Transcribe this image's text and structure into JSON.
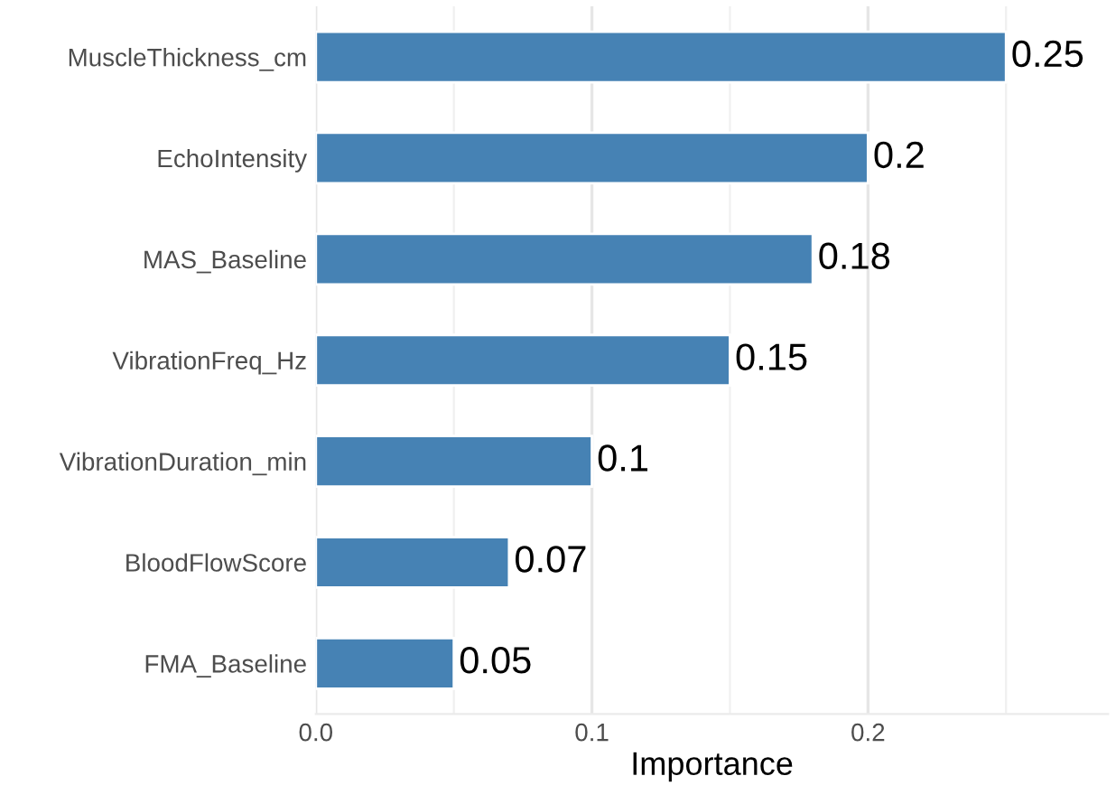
{
  "chart_data": {
    "type": "bar",
    "orientation": "horizontal",
    "xlabel": "Importance",
    "categories": [
      "MuscleThickness_cm",
      "EchoIntensity",
      "MAS_Baseline",
      "VibrationFreq_Hz",
      "VibrationDuration_min",
      "BloodFlowScore",
      "FMA_Baseline"
    ],
    "values": [
      0.25,
      0.2,
      0.18,
      0.15,
      0.1,
      0.07,
      0.05
    ],
    "color": "#4682b4",
    "xlim": [
      0,
      0.287
    ],
    "xticks": [
      {
        "value": 0,
        "label": "0.0"
      },
      0.1,
      0.2
    ],
    "grid": "x",
    "data_labels": true
  }
}
